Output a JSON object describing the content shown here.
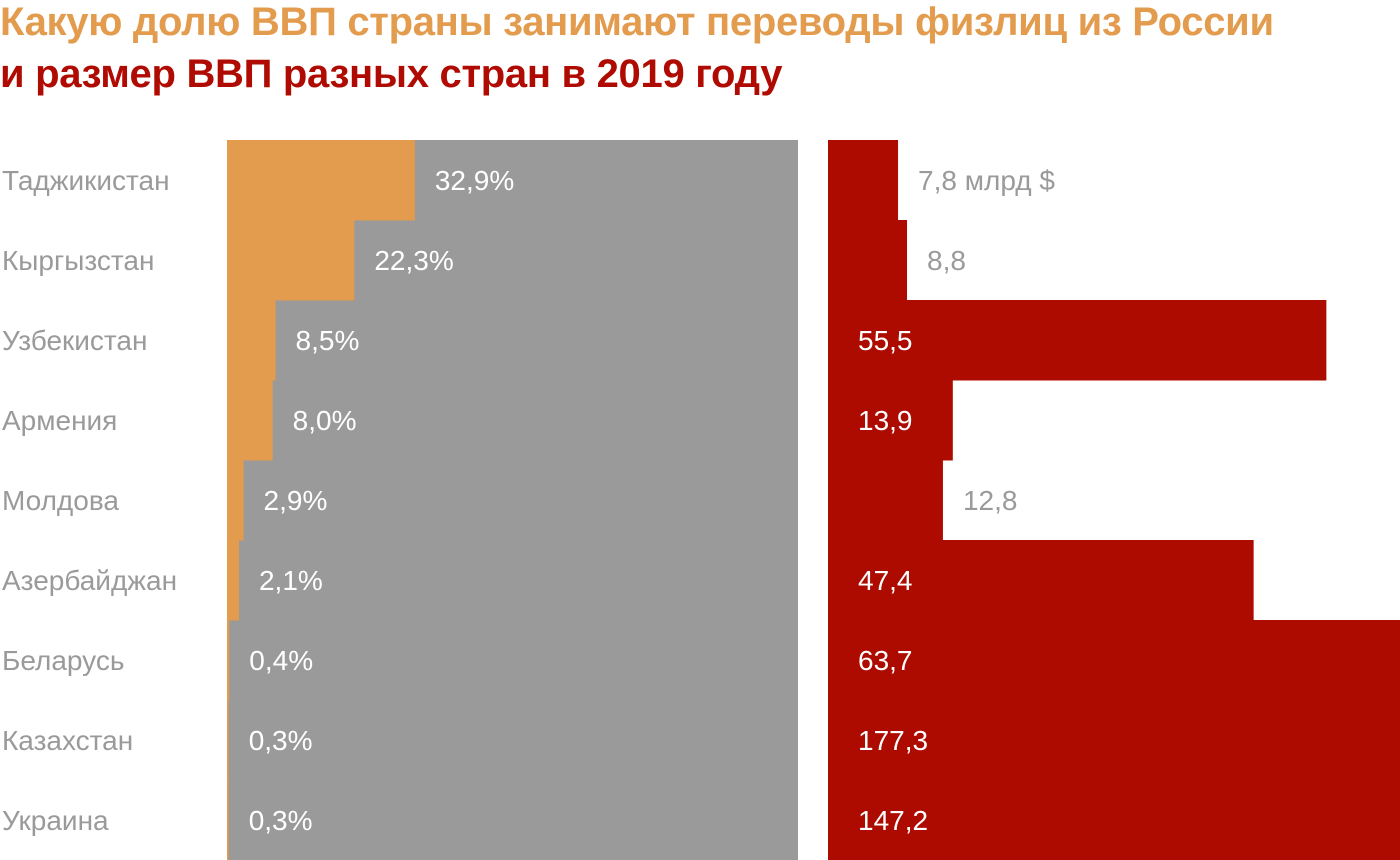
{
  "title_line1": "Какую долю ВВП страны занимают переводы физлиц из России",
  "title_line2": "и размер ВВП разных стран в 2019 году",
  "colors": {
    "share": "#e39b4d",
    "rest": "#9a9a9a",
    "gdp": "#ad0b00",
    "title_line1": "#e39b4d",
    "title_line2": "#b00b02",
    "labels": "#9a9a9a"
  },
  "chart_data": [
    {
      "type": "bar",
      "orientation": "horizontal",
      "stacked": true,
      "categories": [
        "Таджикистан",
        "Кыргызстан",
        "Узбекистан",
        "Армения",
        "Молдова",
        "Азербайджан",
        "Беларусь",
        "Казахстан",
        "Украина"
      ],
      "values": [
        32.9,
        22.3,
        8.5,
        8.0,
        2.9,
        2.1,
        0.4,
        0.3,
        0.3
      ],
      "labels": [
        "32,9%",
        "22,3%",
        "8,5%",
        "8,0%",
        "2,9%",
        "2,1%",
        "0,4%",
        "0,3%",
        "0,3%"
      ],
      "total": 100,
      "xlim": [
        0,
        100
      ]
    },
    {
      "type": "bar",
      "orientation": "horizontal",
      "categories": [
        "Таджикистан",
        "Кыргызстан",
        "Узбекистан",
        "Армения",
        "Молдова",
        "Азербайджан",
        "Беларусь",
        "Казахстан",
        "Украина"
      ],
      "values": [
        7.8,
        8.8,
        55.5,
        13.9,
        12.8,
        47.4,
        63.7,
        177.3,
        147.2
      ],
      "labels": [
        "7,8 млрд $",
        "8,8",
        "55,5",
        "13,9",
        "12,8",
        "47,4",
        "63,7",
        "177,3",
        "147,2"
      ],
      "unit": "млрд $"
    }
  ]
}
